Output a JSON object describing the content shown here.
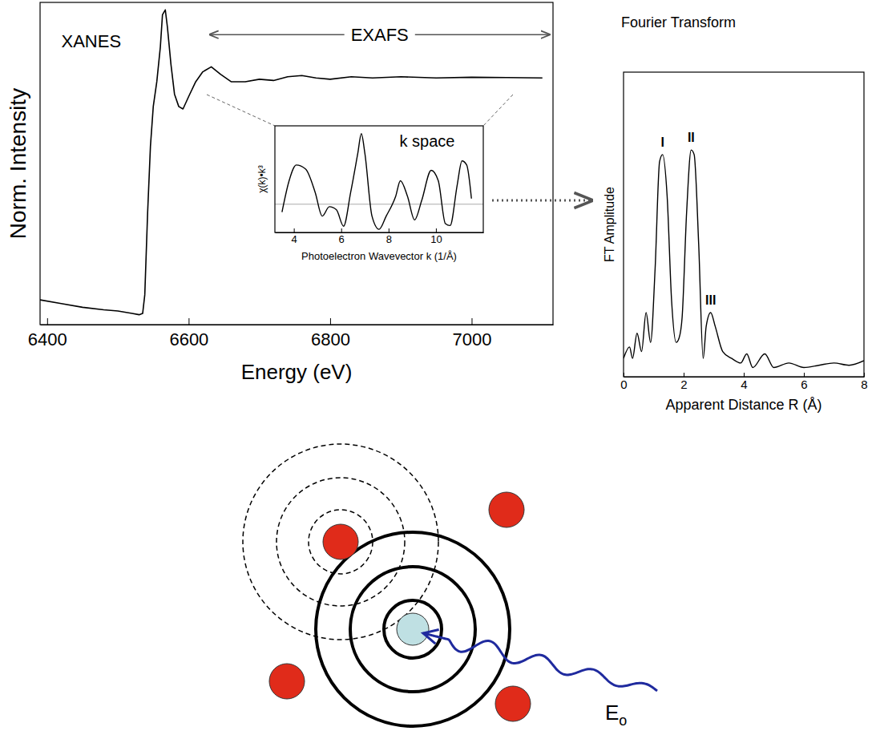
{
  "chart_data": [
    {
      "type": "line",
      "x_label": "Energy (eV)",
      "y_label": "Norm. Intensity",
      "color": "#000000",
      "xlim": [
        6390,
        7115
      ],
      "ylim": [
        0,
        1.3
      ],
      "xticks": [
        6400,
        6600,
        6800,
        7000
      ],
      "tick_labels": "x",
      "grid": false,
      "x": [
        6390,
        6420,
        6450,
        6480,
        6500,
        6520,
        6530,
        6535,
        6538,
        6542,
        6546,
        6550,
        6555,
        6560,
        6563,
        6567,
        6570,
        6575,
        6580,
        6586,
        6592,
        6600,
        6610,
        6620,
        6632,
        6645,
        6660,
        6680,
        6700,
        6720,
        6740,
        6760,
        6780,
        6800,
        6830,
        6860,
        6900,
        6950,
        7000,
        7050,
        7100
      ],
      "values": [
        0.1,
        0.085,
        0.07,
        0.06,
        0.055,
        0.045,
        0.04,
        0.045,
        0.12,
        0.45,
        0.72,
        0.88,
        0.98,
        1.12,
        1.25,
        1.27,
        1.2,
        1.05,
        0.93,
        0.88,
        0.87,
        0.92,
        0.98,
        1.02,
        1.04,
        1.01,
        0.98,
        0.98,
        0.99,
        0.985,
        1.0,
        1.005,
        0.995,
        0.99,
        1.0,
        0.995,
        1.0,
        0.995,
        0.998,
        0.997,
        0.995
      ],
      "annotations": [
        {
          "text": "XANES",
          "x": 6420,
          "y": 1.12
        },
        {
          "text": "EXAFS",
          "x_start": 6630,
          "x_end": 7110,
          "y": 1.17
        }
      ]
    },
    {
      "type": "line",
      "title": "k space",
      "x_label": "Photoelectron Wavevector k (1/Å)",
      "y_label": "χ(k)•k³",
      "color": "#000000",
      "xlim": [
        3.2,
        12
      ],
      "ylim": [
        -0.9,
        2.5
      ],
      "xticks": [
        4,
        6,
        8,
        10
      ],
      "yticks": [
        0
      ],
      "tick_labels": "x",
      "grid": true,
      "x": [
        3.5,
        3.8,
        4.1,
        4.5,
        4.9,
        5.2,
        5.5,
        5.8,
        6.1,
        6.4,
        6.7,
        6.85,
        7.0,
        7.3,
        7.6,
        7.9,
        8.3,
        8.5,
        8.8,
        9.1,
        9.4,
        9.8,
        10.1,
        10.4,
        10.6,
        10.9,
        11.1,
        11.3,
        11.5
      ],
      "values": [
        -0.25,
        0.75,
        1.25,
        1.12,
        0.38,
        -0.38,
        -0.08,
        -0.18,
        -0.7,
        0.38,
        1.62,
        2.25,
        1.62,
        -0.38,
        -0.8,
        -0.38,
        0.25,
        0.75,
        0.25,
        -0.5,
        0.12,
        1.08,
        0.75,
        -0.62,
        -0.68,
        0.62,
        1.38,
        1.25,
        0.18
      ]
    },
    {
      "type": "line",
      "title": "Fourier Transform",
      "x_label": "Apparent Distance R (Å)",
      "y_label": "FT Amplitude",
      "color": "#000000",
      "xlim": [
        0,
        8
      ],
      "ylim": [
        0,
        1.33
      ],
      "xticks": [
        0,
        2,
        4,
        6,
        8
      ],
      "tick_labels": "x",
      "grid": false,
      "x": [
        0,
        0.2,
        0.3,
        0.45,
        0.6,
        0.75,
        0.9,
        1.05,
        1.2,
        1.3,
        1.45,
        1.6,
        1.75,
        1.85,
        1.95,
        2.1,
        2.25,
        2.35,
        2.5,
        2.65,
        2.75,
        2.9,
        3.05,
        3.3,
        3.6,
        3.9,
        4.1,
        4.3,
        4.7,
        5.0,
        5.5,
        6.0,
        6.5,
        7.0,
        7.5,
        8.0
      ],
      "values": [
        0.08,
        0.13,
        0.08,
        0.19,
        0.11,
        0.28,
        0.15,
        0.47,
        0.94,
        0.97,
        0.79,
        0.33,
        0.15,
        0.17,
        0.26,
        0.72,
        0.99,
        0.97,
        0.58,
        0.08,
        0.22,
        0.28,
        0.22,
        0.11,
        0.08,
        0.06,
        0.1,
        0.04,
        0.1,
        0.04,
        0.06,
        0.04,
        0.05,
        0.06,
        0.05,
        0.07
      ],
      "annotations": [
        {
          "text": "I",
          "x": 1.3,
          "y": 0.97
        },
        {
          "text": "II",
          "x": 2.25,
          "y": 0.99
        },
        {
          "text": "III",
          "x": 2.9,
          "y": 0.28
        }
      ]
    }
  ],
  "diagram": {
    "label": "E",
    "label_subscript": "o"
  }
}
